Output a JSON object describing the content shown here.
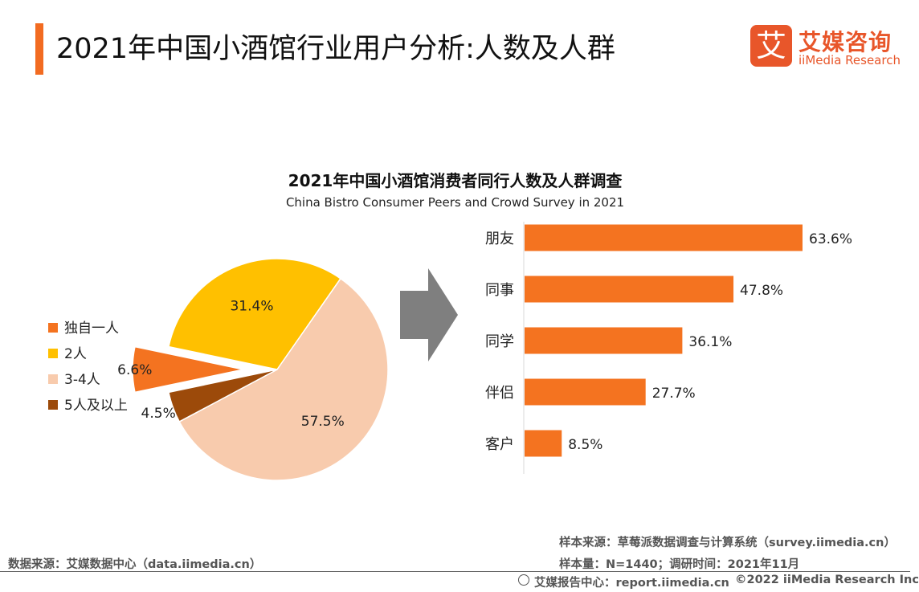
{
  "header": {
    "title": "2021年中国小酒馆行业用户分析:人数及人群",
    "logo_mark": "艾",
    "logo_cn": "艾媒咨询",
    "logo_en": "iiMedia Research"
  },
  "colors": {
    "accent": "#f26b21",
    "pie_alone": "#f47320",
    "pie_two": "#ffc000",
    "pie_three_four": "#f8cbad",
    "pie_five_plus": "#9c4a0a",
    "bar": "#f47320",
    "arrow": "#7f7f7f"
  },
  "chart_data": [
    {
      "type": "pie",
      "title": "2021年中国小酒馆消费者同行人数及人群调查",
      "subtitle": "China Bistro Consumer Peers and Crowd Survey in 2021",
      "legend_position": "left",
      "slices": [
        {
          "label": "独自一人",
          "value": 6.6,
          "display": "6.6%",
          "exploded": true
        },
        {
          "label": "2人",
          "value": 31.4,
          "display": "31.4%"
        },
        {
          "label": "3-4人",
          "value": 57.5,
          "display": "57.5%"
        },
        {
          "label": "5人及以上",
          "value": 4.5,
          "display": "4.5%"
        }
      ]
    },
    {
      "type": "bar",
      "orientation": "horizontal",
      "categories": [
        "朋友",
        "同事",
        "同学",
        "伴侣",
        "客户"
      ],
      "values": [
        63.6,
        47.8,
        36.1,
        27.7,
        8.5
      ],
      "value_labels": [
        "63.6%",
        "47.8%",
        "36.1%",
        "27.7%",
        "8.5%"
      ],
      "grid": false
    }
  ],
  "footer": {
    "source_left": "数据来源：艾媒数据中心（data.iimedia.cn）",
    "sample_source": "样本来源：草莓派数据调查与计算系统（survey.iimedia.cn）",
    "sample_size": "样本量：N=1440；调研时间：2021年11月",
    "report_center": "艾媒报告中心：report.iimedia.cn",
    "copyright": "©2022  iiMedia Research  Inc"
  }
}
